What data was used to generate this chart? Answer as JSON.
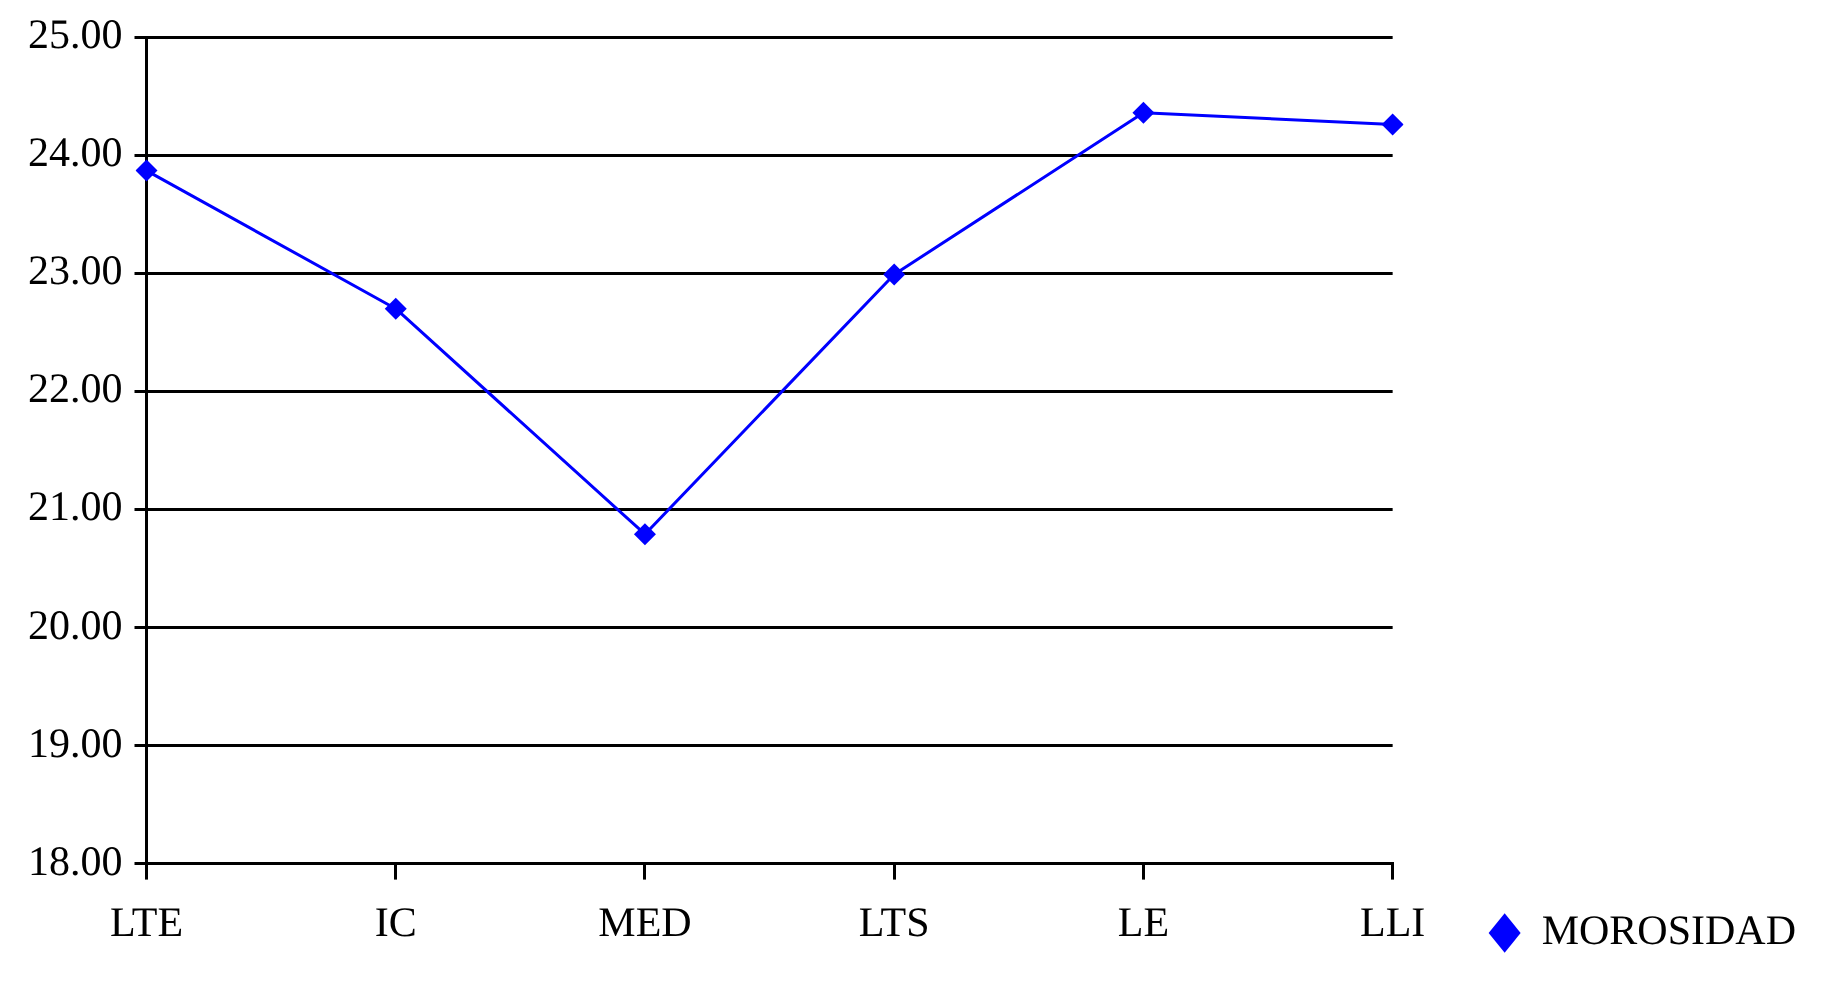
{
  "chart_data": {
    "type": "line",
    "categories": [
      "LTE",
      "IC",
      "MED",
      "LTS",
      "LE",
      "LLI"
    ],
    "series": [
      {
        "name": "MOROSIDAD",
        "color": "#0000ff",
        "values": [
          23.87,
          22.7,
          20.79,
          22.99,
          24.36,
          24.26
        ]
      }
    ],
    "ylim": [
      18,
      25
    ],
    "yticks": [
      {
        "value": 18,
        "label": "18.00"
      },
      {
        "value": 19,
        "label": "19.00"
      },
      {
        "value": 20,
        "label": "20.00"
      },
      {
        "value": 21,
        "label": "21.00"
      },
      {
        "value": 22,
        "label": "22.00"
      },
      {
        "value": 23,
        "label": "23.00"
      },
      {
        "value": 24,
        "label": "24.00"
      },
      {
        "value": 25,
        "label": "25.00"
      }
    ],
    "grid": "y",
    "legend": "bottom right",
    "marker": "diamond",
    "line_style": "solid"
  }
}
